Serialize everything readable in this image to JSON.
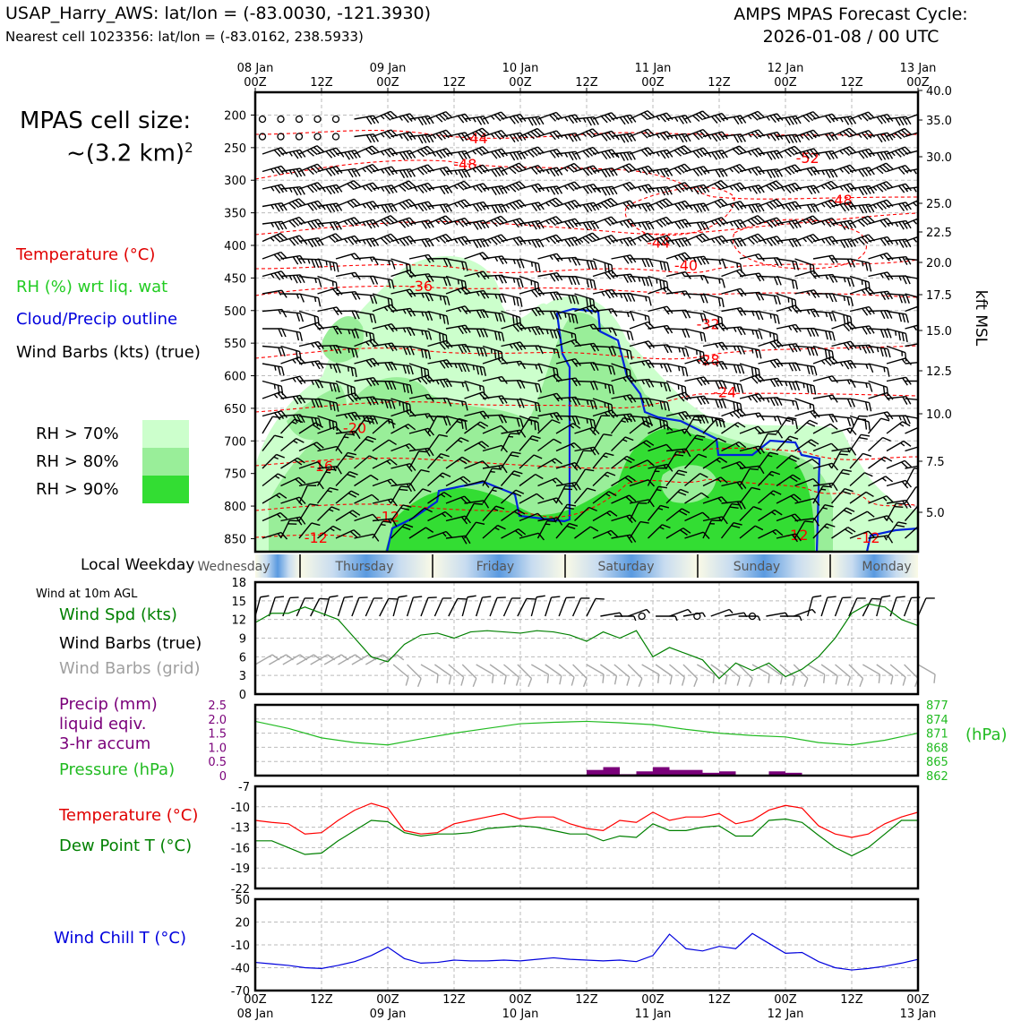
{
  "header": {
    "title_left": "USAP_Harry_AWS: lat/lon = (-83.0030, -121.3930)",
    "subtitle_left": "Nearest cell 1023356: lat/lon = (-83.0162, 238.5933)",
    "title_right_line1": "AMPS MPAS Forecast Cycle:",
    "title_right_line2": "2026-01-08 / 00 UTC"
  },
  "sidebar": {
    "cell_size_line1": "MPAS cell size:",
    "cell_size_line2": "~(3.2 km)",
    "cell_size_sup": "2",
    "legend_temperature": "Temperature (°C)",
    "legend_rh": "RH (%) wrt liq. wat",
    "legend_cloud": "Cloud/Precip outline",
    "legend_wind": "Wind Barbs (kts) (true)",
    "rh_levels": [
      {
        "label": "RH > 70%",
        "color": "#ccffcc"
      },
      {
        "label": "RH > 80%",
        "color": "#99ee99"
      },
      {
        "label": "RH > 90%",
        "color": "#33dd33"
      }
    ],
    "local_weekday_label": "Local Weekday",
    "wind_10m_label": "Wind at 10m AGL",
    "wind_spd_label": "Wind Spd (kts)",
    "wind_barbs_true_label": "Wind Barbs (true)",
    "wind_barbs_grid_label": "Wind Barbs (grid)",
    "precip_label_1": "Precip (mm)",
    "precip_label_2": "liquid eqiv.",
    "precip_label_3": "3-hr accum",
    "pressure_label": "Pressure (hPa)",
    "temp_label": "Temperature (°C)",
    "dewpoint_label": "Dew Point T (°C)",
    "windchill_label": "Wind Chill T (°C)"
  },
  "colors": {
    "temperature": "#ff0000",
    "rh": "#00aa00",
    "cloud_outline": "#0022dd",
    "wind_barb": "#000000",
    "wind_barb_grid": "#a8a8a8",
    "pressure": "#22bb22",
    "precip": "#7a007a",
    "dewpoint": "#008000",
    "windchill": "#0000dd"
  },
  "chart_data": [
    {
      "type": "heatmap",
      "name": "time-height cross section",
      "x_top_ticks": [
        {
          "hour": 0,
          "label": "00Z",
          "date": "08 Jan"
        },
        {
          "hour": 12,
          "label": "12Z",
          "date": ""
        },
        {
          "hour": 24,
          "label": "00Z",
          "date": "09 Jan"
        },
        {
          "hour": 36,
          "label": "12Z",
          "date": ""
        },
        {
          "hour": 48,
          "label": "00Z",
          "date": "10 Jan"
        },
        {
          "hour": 60,
          "label": "12Z",
          "date": ""
        },
        {
          "hour": 72,
          "label": "00Z",
          "date": "11 Jan"
        },
        {
          "hour": 84,
          "label": "12Z",
          "date": ""
        },
        {
          "hour": 96,
          "label": "00Z",
          "date": "12 Jan"
        },
        {
          "hour": 108,
          "label": "12Z",
          "date": ""
        },
        {
          "hour": 120,
          "label": "00Z",
          "date": "13 Jan"
        }
      ],
      "y_left_ticks_hpa": [
        "200",
        "250",
        "300",
        "350",
        "400",
        "450",
        "500",
        "550",
        "600",
        "650",
        "700",
        "750",
        "800",
        "850"
      ],
      "y_right_ticks_kft": [
        "40.0",
        "35.0",
        "30.0",
        "25.0",
        "22.5",
        "20.0",
        "17.5",
        "15.0",
        "12.5",
        "10.0",
        "7.5",
        "5.0"
      ],
      "y_right_label": "kft MSL",
      "temperature_contour_labels": [
        {
          "t": 40,
          "p": 235,
          "label": "-44"
        },
        {
          "t": 38,
          "p": 275,
          "label": "-48"
        },
        {
          "t": 100,
          "p": 265,
          "label": "-52"
        },
        {
          "t": 106,
          "p": 330,
          "label": "-48"
        },
        {
          "t": 73,
          "p": 395,
          "label": "-44"
        },
        {
          "t": 78,
          "p": 430,
          "label": "-40"
        },
        {
          "t": 30,
          "p": 462,
          "label": "-36"
        },
        {
          "t": 82,
          "p": 520,
          "label": "-32"
        },
        {
          "t": 82,
          "p": 575,
          "label": "-28"
        },
        {
          "t": 85,
          "p": 625,
          "label": "-24"
        },
        {
          "t": 18,
          "p": 680,
          "label": "-20"
        },
        {
          "t": 12,
          "p": 738,
          "label": "-16"
        },
        {
          "t": 24,
          "p": 816,
          "label": "-12"
        },
        {
          "t": 11,
          "p": 848,
          "label": "-12"
        },
        {
          "t": 98,
          "p": 844,
          "label": "-12"
        },
        {
          "t": 111,
          "p": 848,
          "label": "-12"
        }
      ],
      "weekdays": [
        "Wednesday",
        "Thursday",
        "Friday",
        "Saturday",
        "Sunday",
        "Monday"
      ]
    },
    {
      "type": "line",
      "name": "Wind Spd (kts)",
      "xlim": [
        0,
        120
      ],
      "ylim": [
        0,
        18
      ],
      "y_ticks": [
        "18",
        "15",
        "12",
        "9",
        "6",
        "3",
        "0"
      ],
      "x": [
        0,
        3,
        6,
        9,
        12,
        15,
        18,
        21,
        24,
        27,
        30,
        33,
        36,
        39,
        42,
        45,
        48,
        51,
        54,
        57,
        60,
        63,
        66,
        69,
        72,
        75,
        78,
        81,
        84,
        87,
        90,
        93,
        96,
        99,
        102,
        105,
        108,
        111,
        114,
        117,
        120
      ],
      "values": [
        11.5,
        13,
        13,
        14,
        13,
        12,
        9,
        6,
        5.2,
        8,
        9.5,
        9.8,
        9,
        10,
        10.2,
        10,
        9.8,
        10.2,
        10,
        9.5,
        8.5,
        10,
        9,
        10.2,
        6,
        7.5,
        6.5,
        5.5,
        2.5,
        5,
        3.8,
        5,
        2.8,
        4,
        6,
        9,
        13,
        14.5,
        14,
        12,
        11
      ]
    },
    {
      "type": "bar",
      "name": "Precip (mm) and Pressure (hPa)",
      "precip_ylim": [
        0,
        2.5
      ],
      "precip_y_ticks": [
        "2.5",
        "2.0",
        "1.5",
        "1.0",
        "0.5",
        "0"
      ],
      "pressure_ylim": [
        862,
        877
      ],
      "pressure_y_ticks": [
        "877",
        "874",
        "871",
        "868",
        "865",
        "862"
      ],
      "pressure_axis_label": "(hPa)",
      "precip_x": [
        61.5,
        64.5,
        67.5,
        70.5,
        73.5,
        76.5,
        79.5,
        82.5,
        85.5,
        94.5,
        97.5
      ],
      "precip_values": [
        0.2,
        0.3,
        0.05,
        0.15,
        0.3,
        0.2,
        0.2,
        0.1,
        0.15,
        0.15,
        0.1
      ],
      "pressure_x": [
        0,
        6,
        12,
        18,
        24,
        30,
        36,
        42,
        48,
        54,
        60,
        66,
        72,
        78,
        84,
        90,
        96,
        102,
        108,
        114,
        120
      ],
      "pressure_values": [
        873.5,
        872,
        870,
        869,
        868.5,
        869.8,
        871,
        872,
        873,
        873.3,
        873.5,
        873.2,
        872.8,
        871.8,
        871,
        870.5,
        870.2,
        869,
        868.5,
        869.5,
        871
      ]
    },
    {
      "type": "line",
      "name": "Temperature and Dew Point (°C)",
      "xlim": [
        0,
        120
      ],
      "ylim": [
        -22,
        -7
      ],
      "y_ticks": [
        "-7",
        "-10",
        "-13",
        "-16",
        "-19",
        "-22"
      ],
      "x": [
        0,
        3,
        6,
        9,
        12,
        15,
        18,
        21,
        24,
        27,
        30,
        33,
        36,
        39,
        42,
        45,
        48,
        51,
        54,
        57,
        60,
        63,
        66,
        69,
        72,
        75,
        78,
        81,
        84,
        87,
        90,
        93,
        96,
        99,
        102,
        105,
        108,
        111,
        114,
        117,
        120
      ],
      "series": [
        {
          "name": "Temperature (°C)",
          "values": [
            -12,
            -12.3,
            -12.5,
            -14,
            -13.8,
            -12,
            -10.5,
            -9.5,
            -10.2,
            -13.5,
            -14,
            -13.8,
            -12.5,
            -12,
            -11.5,
            -11,
            -11.8,
            -11.5,
            -11.5,
            -12.5,
            -13.2,
            -13.5,
            -12,
            -12.3,
            -10.8,
            -12,
            -11.5,
            -11.5,
            -11,
            -12.5,
            -12,
            -10.5,
            -9.8,
            -10.2,
            -12.8,
            -14,
            -14.5,
            -14,
            -12.5,
            -11.5,
            -10.8
          ]
        },
        {
          "name": "Dew Point T (°C)",
          "values": [
            -15,
            -15,
            -16,
            -17,
            -16.8,
            -15,
            -13.5,
            -12,
            -12.2,
            -13.8,
            -14.3,
            -14,
            -14,
            -13.8,
            -13.2,
            -13,
            -12.8,
            -13,
            -13.5,
            -14,
            -14,
            -15,
            -14.3,
            -14.5,
            -12.5,
            -13.5,
            -13.5,
            -13,
            -12.8,
            -14.3,
            -14.3,
            -12,
            -11.8,
            -12.3,
            -14.2,
            -16,
            -17.2,
            -16,
            -14,
            -12,
            -12
          ]
        }
      ]
    },
    {
      "type": "line",
      "name": "Wind Chill T (°C)",
      "xlim": [
        0,
        120
      ],
      "ylim": [
        -70,
        50
      ],
      "y_ticks": [
        "50",
        "20",
        "-10",
        "-40",
        "-70"
      ],
      "x": [
        0,
        3,
        6,
        9,
        12,
        15,
        18,
        21,
        24,
        27,
        30,
        33,
        36,
        39,
        42,
        45,
        48,
        51,
        54,
        57,
        60,
        63,
        66,
        69,
        72,
        75,
        78,
        81,
        84,
        87,
        90,
        93,
        96,
        99,
        102,
        105,
        108,
        111,
        114,
        117,
        120
      ],
      "values": [
        -33,
        -35,
        -37,
        -40,
        -41,
        -37,
        -32,
        -24,
        -13,
        -28,
        -34,
        -33,
        -30,
        -31,
        -31,
        -30,
        -31,
        -29,
        -27,
        -29,
        -30,
        -31,
        -30,
        -32,
        -24,
        4,
        -15,
        -18,
        -12,
        -15,
        5,
        -8,
        -21,
        -20,
        -32,
        -40,
        -43,
        -41,
        -38,
        -34,
        -29
      ]
    }
  ],
  "bottom_axis": [
    {
      "hour": 0,
      "label": "00Z",
      "date": "08 Jan"
    },
    {
      "hour": 12,
      "label": "12Z",
      "date": ""
    },
    {
      "hour": 24,
      "label": "00Z",
      "date": "09 Jan"
    },
    {
      "hour": 36,
      "label": "12Z",
      "date": ""
    },
    {
      "hour": 48,
      "label": "00Z",
      "date": "10 Jan"
    },
    {
      "hour": 60,
      "label": "12Z",
      "date": ""
    },
    {
      "hour": 72,
      "label": "00Z",
      "date": "11 Jan"
    },
    {
      "hour": 84,
      "label": "12Z",
      "date": ""
    },
    {
      "hour": 96,
      "label": "00Z",
      "date": "12 Jan"
    },
    {
      "hour": 108,
      "label": "12Z",
      "date": ""
    },
    {
      "hour": 120,
      "label": "00Z",
      "date": "13 Jan"
    }
  ]
}
